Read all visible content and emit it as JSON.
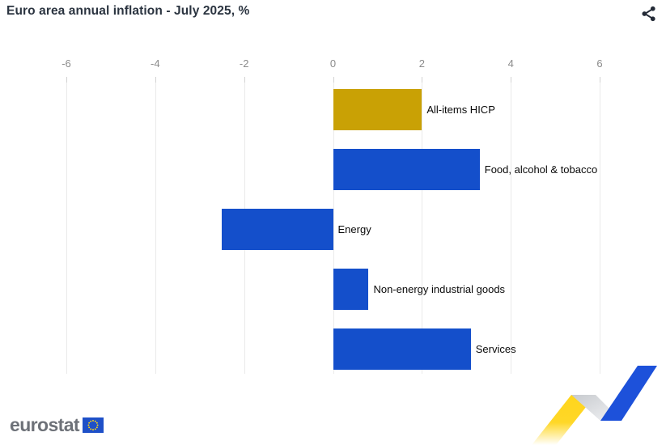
{
  "header": {
    "title": "Euro area annual inflation - July 2025, %"
  },
  "icons": {
    "share": "share-icon",
    "eu_flag": "eu-flag-icon",
    "ribbon": "eurostat-zigzag-ribbon"
  },
  "chart_data": {
    "type": "bar",
    "orientation": "horizontal",
    "title": "Euro area annual inflation - July 2025, %",
    "categories": [
      "All-items HICP",
      "Food, alcohol & tobacco",
      "Energy",
      "Non-energy industrial goods",
      "Services"
    ],
    "values": [
      2.0,
      3.3,
      -2.5,
      0.8,
      3.1
    ],
    "bar_colors": [
      "#C9A105",
      "#144FCB",
      "#144FCB",
      "#144FCB",
      "#144FCB"
    ],
    "x_ticks": [
      -6,
      -4,
      -2,
      0,
      2,
      4,
      6
    ],
    "xlim": [
      -6,
      6
    ],
    "xlabel": "",
    "ylabel": "",
    "axis_position": "top",
    "grid": "vertical-only",
    "legend": "none",
    "data_labels": "none"
  },
  "colors": {
    "gold_bar": "#C9A105",
    "blue_bar": "#144FCB",
    "title_text": "#2b3440",
    "tick_text": "#8b8b8b",
    "gridline": "#eaeaea",
    "logo_gray": "#6d7178",
    "ribbon_yellow": "#FFD51C",
    "ribbon_silver": "#d3d6da",
    "ribbon_blue": "#1d51da"
  },
  "footer": {
    "logo_text": "eurostat"
  }
}
